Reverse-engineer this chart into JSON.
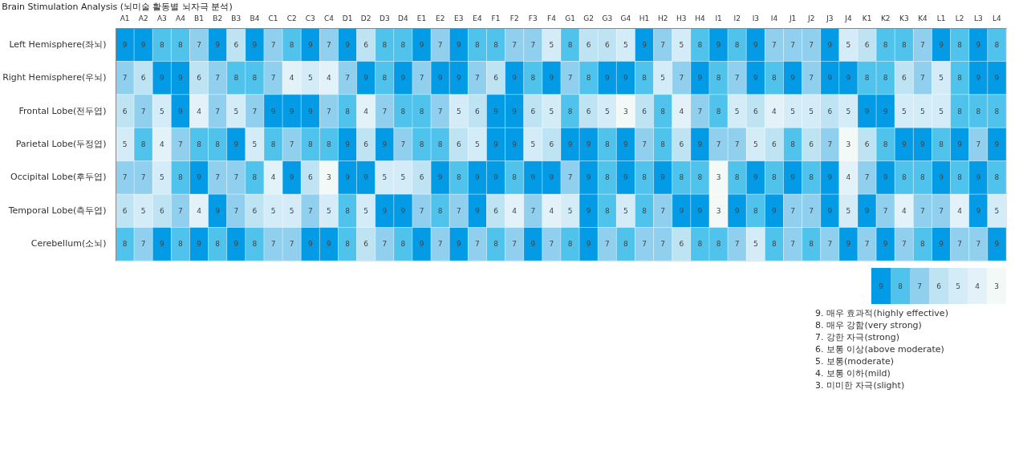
{
  "chart_data": {
    "type": "heatmap",
    "title": "Brain Stimulation Analysis (뇌미술 활동별 뇌자극 분석)",
    "categories": [
      "A1",
      "A2",
      "A3",
      "A4",
      "B1",
      "B2",
      "B3",
      "B4",
      "C1",
      "C2",
      "C3",
      "C4",
      "D1",
      "D2",
      "D3",
      "D4",
      "E1",
      "E2",
      "E3",
      "E4",
      "F1",
      "F2",
      "F3",
      "F4",
      "G1",
      "G2",
      "G3",
      "G4",
      "H1",
      "H2",
      "H3",
      "H4",
      "I1",
      "I2",
      "I3",
      "I4",
      "J1",
      "J2",
      "J3",
      "J4",
      "K1",
      "K2",
      "K3",
      "K4",
      "L1",
      "L2",
      "L3",
      "L4"
    ],
    "y_categories": [
      "Left Hemisphere(좌뇌)",
      "Right Hemisphere(우뇌)",
      "Frontal Lobe(전두엽)",
      "Parietal Lobe(두정엽)",
      "Occipital Lobe(후두엽)",
      "Temporal Lobe(측두엽)",
      "Cerebellum(소뇌)"
    ],
    "cells": [
      [
        9,
        9,
        8,
        8,
        7,
        9,
        6,
        9,
        7,
        8,
        9,
        7,
        9,
        6,
        8,
        8,
        9,
        7,
        9,
        8,
        8,
        7,
        7,
        5,
        8,
        6,
        6,
        5,
        9,
        7,
        5,
        8,
        9,
        8,
        9,
        7,
        7,
        7,
        9,
        5,
        6,
        8,
        8,
        7,
        9,
        8,
        9,
        8
      ],
      [
        7,
        6,
        9,
        9,
        6,
        7,
        8,
        8,
        7,
        4,
        5,
        4,
        7,
        9,
        8,
        9,
        7,
        9,
        9,
        7,
        6,
        9,
        8,
        9,
        7,
        8,
        9,
        9,
        8,
        5,
        7,
        9,
        8,
        7,
        9,
        8,
        9,
        7,
        9,
        9,
        8,
        8,
        6,
        7,
        5,
        8,
        9,
        9
      ],
      [
        6,
        7,
        5,
        9,
        4,
        7,
        5,
        7,
        9,
        9,
        9,
        7,
        8,
        4,
        7,
        8,
        8,
        7,
        5,
        6,
        9,
        9,
        6,
        5,
        8,
        6,
        5,
        3,
        6,
        8,
        4,
        7,
        8,
        5,
        6,
        4,
        5,
        5,
        6,
        5,
        9,
        9,
        5,
        5,
        5,
        8,
        8,
        8
      ],
      [
        5,
        8,
        4,
        7,
        8,
        8,
        9,
        5,
        8,
        7,
        8,
        8,
        9,
        6,
        9,
        7,
        8,
        8,
        6,
        5,
        9,
        9,
        5,
        6,
        9,
        9,
        8,
        9,
        7,
        8,
        6,
        9,
        7,
        7,
        5,
        6,
        8,
        6,
        7,
        3,
        6,
        8,
        9,
        9,
        8,
        9,
        7,
        9
      ],
      [
        7,
        7,
        5,
        8,
        9,
        7,
        7,
        8,
        4,
        9,
        6,
        3,
        9,
        9,
        5,
        5,
        6,
        9,
        8,
        9,
        9,
        8,
        9,
        9,
        7,
        9,
        8,
        9,
        8,
        9,
        8,
        8,
        3,
        8,
        9,
        8,
        9,
        8,
        9,
        4,
        7,
        9,
        8,
        8,
        9,
        8,
        9,
        8
      ],
      [
        6,
        5,
        6,
        7,
        4,
        9,
        7,
        6,
        5,
        5,
        7,
        5,
        8,
        5,
        9,
        9,
        7,
        8,
        7,
        9,
        6,
        4,
        7,
        4,
        5,
        9,
        8,
        5,
        8,
        7,
        9,
        9,
        3,
        9,
        8,
        9,
        7,
        7,
        9,
        5,
        9,
        7,
        4,
        7,
        7,
        4,
        9,
        5
      ],
      [
        8,
        7,
        9,
        8,
        9,
        8,
        9,
        8,
        7,
        7,
        9,
        9,
        8,
        6,
        7,
        8,
        9,
        7,
        9,
        7,
        8,
        7,
        9,
        7,
        8,
        9,
        7,
        8,
        7,
        7,
        6,
        8,
        8,
        7,
        5,
        8,
        7,
        8,
        7,
        9,
        7,
        9,
        7,
        8,
        9,
        7,
        7,
        9
      ]
    ],
    "cticks": [
      9,
      8,
      7,
      6,
      5,
      4,
      3
    ],
    "colors": [
      "#039be5",
      "#4fc3ec",
      "#90d0ee",
      "#bee3f3",
      "#d4ecf7",
      "#e3f2f8",
      "#f3f9f6"
    ],
    "data_labels": true,
    "annotations": [
      "9. 매우 효과적(highly effective)",
      "8. 매우 강함(very strong)",
      "7. 강한 자극(strong)",
      "6. 보통 이상(above moderate)",
      "5. 보통(moderate)",
      "4. 보통 이하(mild)",
      "3. 미미한 자극(slight)"
    ]
  }
}
